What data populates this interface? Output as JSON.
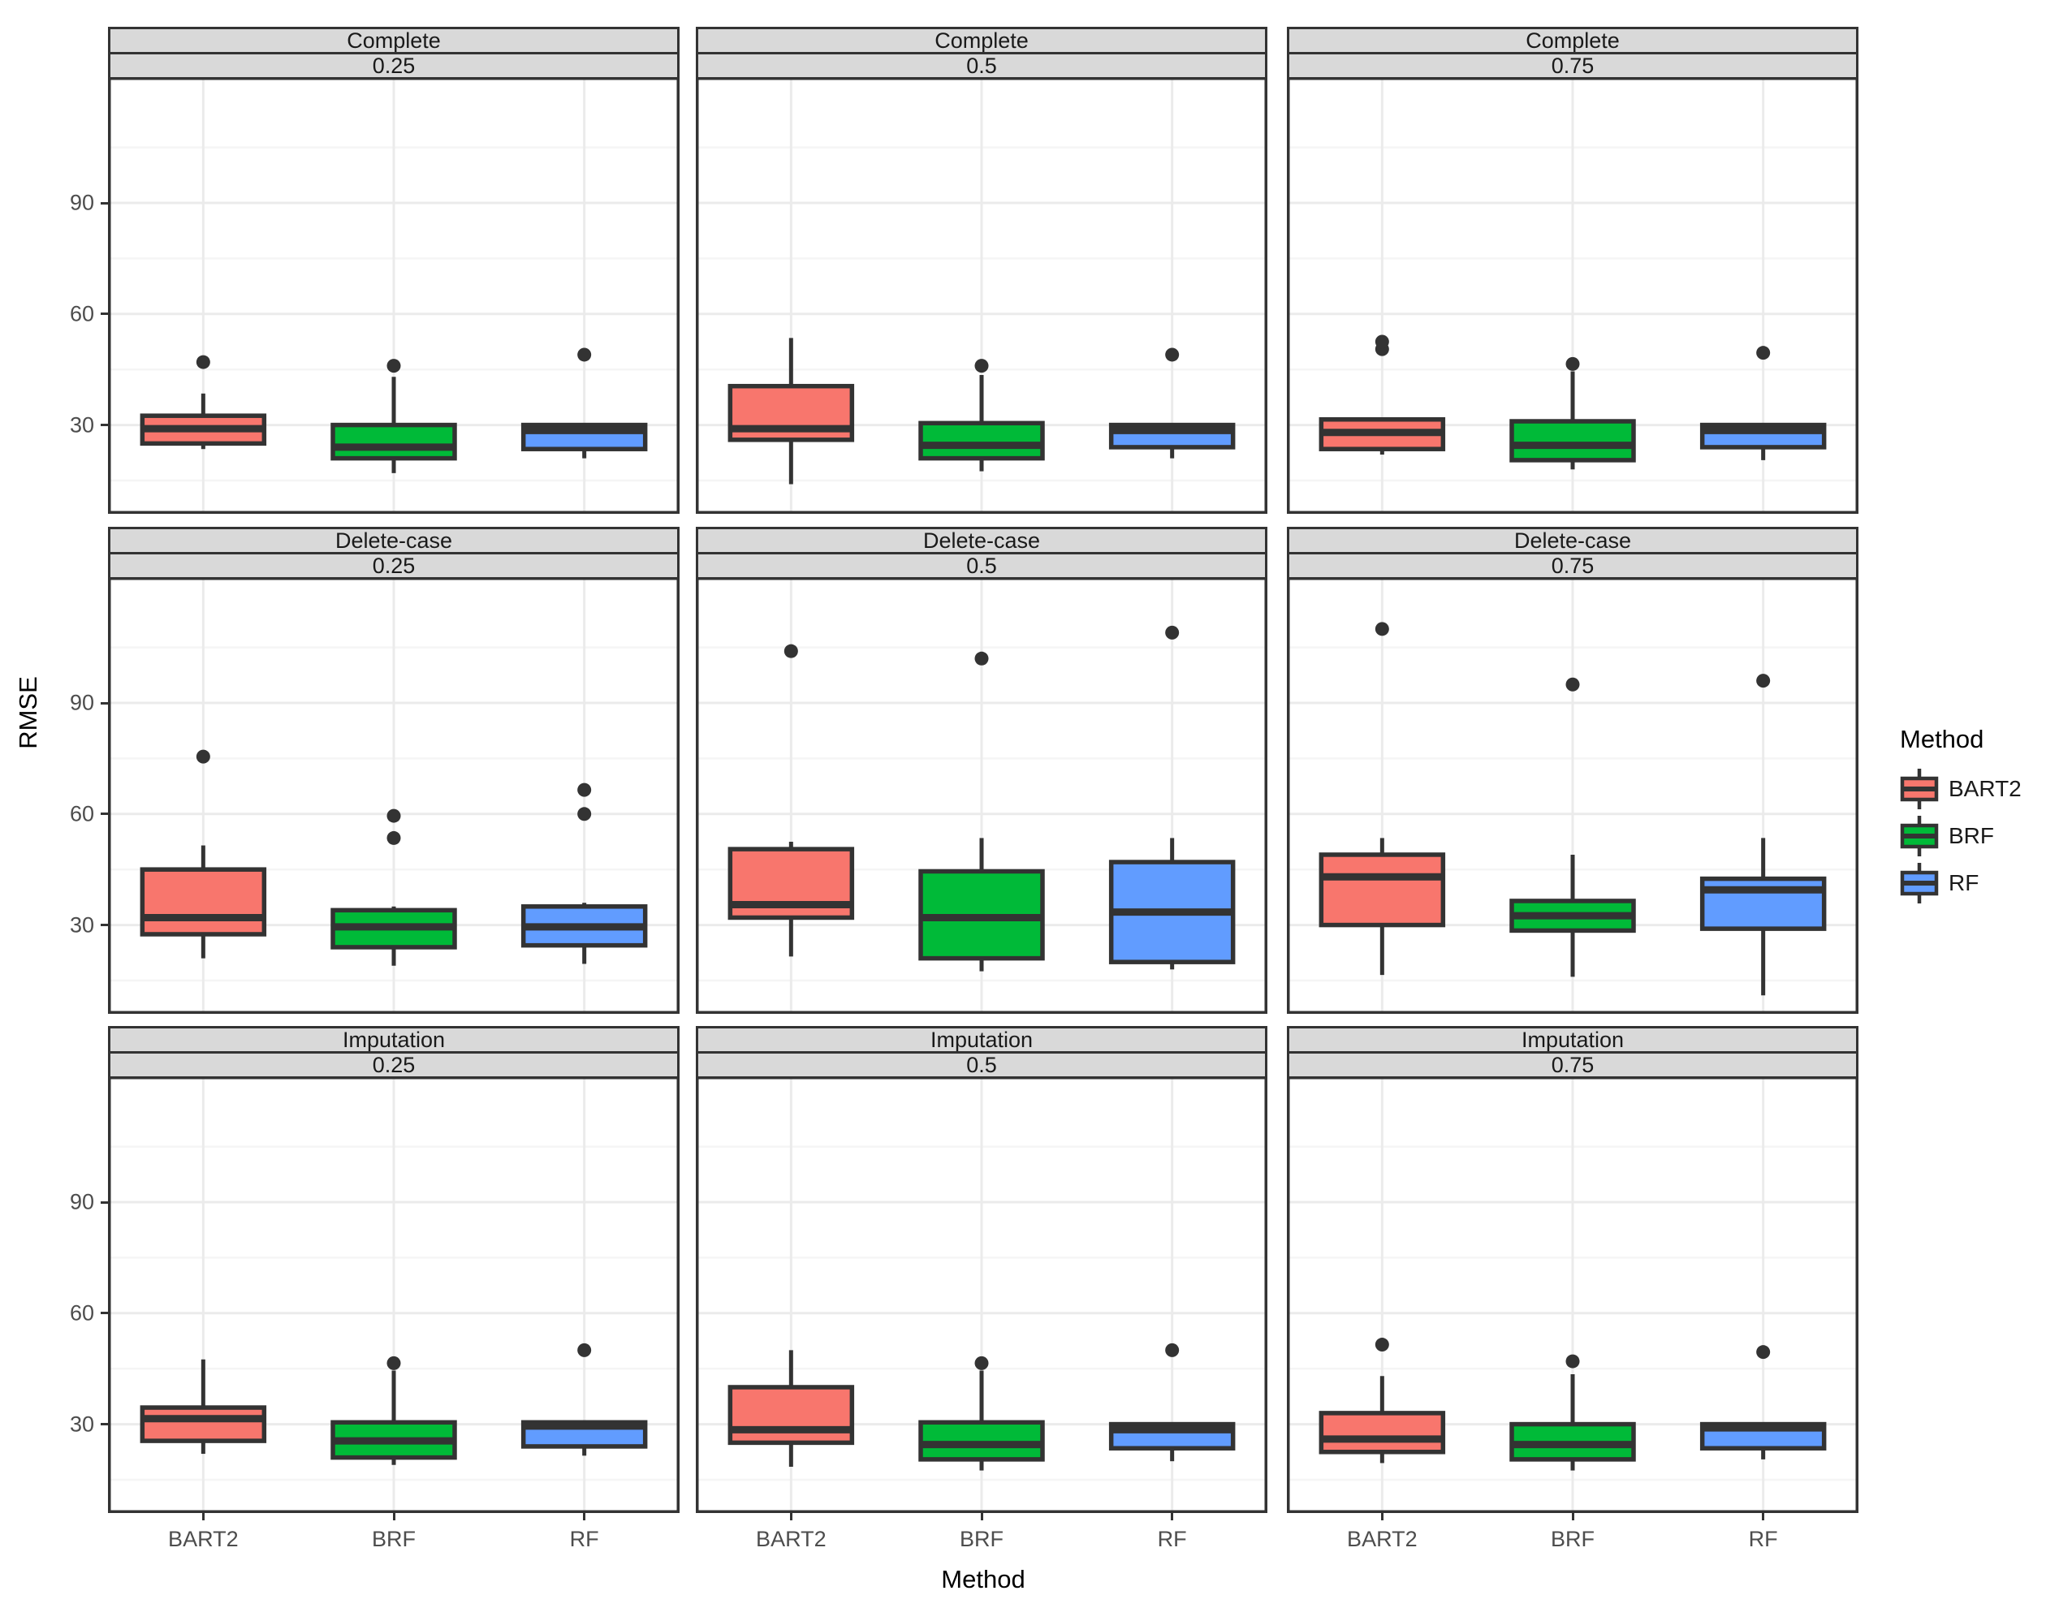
{
  "figure": {
    "y_axis_label": "RMSE",
    "x_axis_label": "Method",
    "y_tick_labels": [
      "90",
      "60",
      "30"
    ],
    "x_category_labels": [
      "BART2",
      "BRF",
      "RF"
    ],
    "legend": {
      "title": "Method",
      "entries": [
        {
          "label": "BART2",
          "color": "#F8766D"
        },
        {
          "label": "BRF",
          "color": "#00BA38"
        },
        {
          "label": "RF",
          "color": "#619CFF"
        }
      ]
    },
    "colors": {
      "strip_background": "#D9D9D9",
      "panel_border": "#333333",
      "box_outline": "#333333",
      "gridline_major": "#EBEBEB",
      "gridline_minor": "#F5F5F5",
      "tick_text": "#4D4D4D",
      "outlier": "#333333"
    }
  },
  "chart_data": {
    "type": "boxplot",
    "facet_rows": [
      "Complete",
      "Delete-case",
      "Imputation"
    ],
    "facet_cols": [
      "0.25",
      "0.5",
      "0.75"
    ],
    "categories": [
      "BART2",
      "BRF",
      "RF"
    ],
    "series_colors": {
      "BART2": "#F8766D",
      "BRF": "#00BA38",
      "RF": "#619CFF"
    },
    "title": "",
    "xlabel": "Method",
    "ylabel": "RMSE",
    "ylim": [
      6,
      124
    ],
    "y_major_ticks": [
      30,
      60,
      90
    ],
    "y_minor_gridlines": [
      15,
      45,
      75,
      105
    ],
    "legend_position": "right",
    "panels": [
      {
        "row_label": "Complete",
        "col_label": "0.25",
        "boxes": [
          {
            "method": "BART2",
            "whisker_low": 23.5,
            "q1": 25,
            "median": 29,
            "q3": 32.5,
            "whisker_high": 38.5,
            "outliers": [
              47
            ]
          },
          {
            "method": "BRF",
            "whisker_low": 17,
            "q1": 21,
            "median": 24,
            "q3": 30,
            "whisker_high": 43,
            "outliers": [
              46
            ]
          },
          {
            "method": "RF",
            "whisker_low": 21,
            "q1": 23.5,
            "median": 28.5,
            "q3": 30,
            "whisker_high": 30,
            "outliers": [
              49
            ]
          }
        ]
      },
      {
        "row_label": "Complete",
        "col_label": "0.5",
        "boxes": [
          {
            "method": "BART2",
            "whisker_low": 14,
            "q1": 26,
            "median": 29,
            "q3": 40.5,
            "whisker_high": 53.5,
            "outliers": []
          },
          {
            "method": "BRF",
            "whisker_low": 17.5,
            "q1": 21,
            "median": 24.5,
            "q3": 30.5,
            "whisker_high": 43.5,
            "outliers": [
              46
            ]
          },
          {
            "method": "RF",
            "whisker_low": 21,
            "q1": 24,
            "median": 28.5,
            "q3": 30,
            "whisker_high": 30,
            "outliers": [
              49
            ]
          }
        ]
      },
      {
        "row_label": "Complete",
        "col_label": "0.75",
        "boxes": [
          {
            "method": "BART2",
            "whisker_low": 22,
            "q1": 23.5,
            "median": 28,
            "q3": 31.5,
            "whisker_high": 32,
            "outliers": [
              50.5,
              52.5
            ]
          },
          {
            "method": "BRF",
            "whisker_low": 18,
            "q1": 20.5,
            "median": 24.5,
            "q3": 31,
            "whisker_high": 44.5,
            "outliers": [
              46.5
            ]
          },
          {
            "method": "RF",
            "whisker_low": 20.5,
            "q1": 24,
            "median": 28.5,
            "q3": 30,
            "whisker_high": 30,
            "outliers": [
              49.5
            ]
          }
        ]
      },
      {
        "row_label": "Delete-case",
        "col_label": "0.25",
        "boxes": [
          {
            "method": "BART2",
            "whisker_low": 21,
            "q1": 27.5,
            "median": 32,
            "q3": 45,
            "whisker_high": 51.5,
            "outliers": [
              75.5
            ]
          },
          {
            "method": "BRF",
            "whisker_low": 19,
            "q1": 24,
            "median": 29.5,
            "q3": 34,
            "whisker_high": 35,
            "outliers": [
              53.5,
              59.5
            ]
          },
          {
            "method": "RF",
            "whisker_low": 19.5,
            "q1": 24.5,
            "median": 29.5,
            "q3": 35,
            "whisker_high": 36,
            "outliers": [
              60,
              66.5
            ]
          }
        ]
      },
      {
        "row_label": "Delete-case",
        "col_label": "0.5",
        "boxes": [
          {
            "method": "BART2",
            "whisker_low": 21.5,
            "q1": 32,
            "median": 35.5,
            "q3": 50.5,
            "whisker_high": 52.5,
            "outliers": [
              104
            ]
          },
          {
            "method": "BRF",
            "whisker_low": 17.5,
            "q1": 21,
            "median": 32,
            "q3": 44.5,
            "whisker_high": 53.5,
            "outliers": [
              102
            ]
          },
          {
            "method": "RF",
            "whisker_low": 18,
            "q1": 20,
            "median": 33.5,
            "q3": 47,
            "whisker_high": 53.5,
            "outliers": [
              109
            ]
          }
        ]
      },
      {
        "row_label": "Delete-case",
        "col_label": "0.75",
        "boxes": [
          {
            "method": "BART2",
            "whisker_low": 16.5,
            "q1": 30,
            "median": 43,
            "q3": 49,
            "whisker_high": 53.5,
            "outliers": [
              110
            ]
          },
          {
            "method": "BRF",
            "whisker_low": 16,
            "q1": 28.5,
            "median": 32.5,
            "q3": 36.5,
            "whisker_high": 49,
            "outliers": [
              95
            ]
          },
          {
            "method": "RF",
            "whisker_low": 11,
            "q1": 29,
            "median": 39.5,
            "q3": 42.5,
            "whisker_high": 53.5,
            "outliers": [
              96
            ]
          }
        ]
      },
      {
        "row_label": "Imputation",
        "col_label": "0.25",
        "boxes": [
          {
            "method": "BART2",
            "whisker_low": 22,
            "q1": 25.5,
            "median": 31.5,
            "q3": 34.5,
            "whisker_high": 47.5,
            "outliers": []
          },
          {
            "method": "BRF",
            "whisker_low": 19,
            "q1": 21,
            "median": 25.5,
            "q3": 30.5,
            "whisker_high": 44.5,
            "outliers": [
              46.5
            ]
          },
          {
            "method": "RF",
            "whisker_low": 21.5,
            "q1": 24,
            "median": 29.5,
            "q3": 30.5,
            "whisker_high": 30.5,
            "outliers": [
              50
            ]
          }
        ]
      },
      {
        "row_label": "Imputation",
        "col_label": "0.5",
        "boxes": [
          {
            "method": "BART2",
            "whisker_low": 18.5,
            "q1": 25,
            "median": 28.5,
            "q3": 40,
            "whisker_high": 50,
            "outliers": []
          },
          {
            "method": "BRF",
            "whisker_low": 17.5,
            "q1": 20.5,
            "median": 24.5,
            "q3": 30.5,
            "whisker_high": 44.5,
            "outliers": [
              46.5
            ]
          },
          {
            "method": "RF",
            "whisker_low": 20,
            "q1": 23.5,
            "median": 28.5,
            "q3": 30,
            "whisker_high": 30,
            "outliers": [
              50
            ]
          }
        ]
      },
      {
        "row_label": "Imputation",
        "col_label": "0.75",
        "boxes": [
          {
            "method": "BART2",
            "whisker_low": 19.5,
            "q1": 22.5,
            "median": 26,
            "q3": 33,
            "whisker_high": 43,
            "outliers": [
              51.5
            ]
          },
          {
            "method": "BRF",
            "whisker_low": 17.5,
            "q1": 20.5,
            "median": 24.5,
            "q3": 30,
            "whisker_high": 43.5,
            "outliers": [
              47
            ]
          },
          {
            "method": "RF",
            "whisker_low": 20.5,
            "q1": 23.5,
            "median": 29,
            "q3": 30,
            "whisker_high": 30,
            "outliers": [
              49.5
            ]
          }
        ]
      }
    ]
  }
}
